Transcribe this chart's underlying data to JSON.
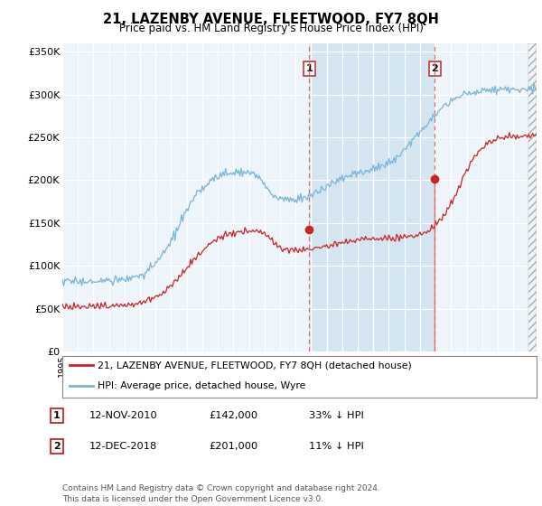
{
  "title": "21, LAZENBY AVENUE, FLEETWOOD, FY7 8QH",
  "subtitle": "Price paid vs. HM Land Registry's House Price Index (HPI)",
  "hpi_color": "#7ab4d8",
  "price_color": "#cc2222",
  "background_color": "#ddeef8",
  "plot_bg_color": "#f0f8ff",
  "shading_color": "#d0e8f8",
  "ylim": [
    0,
    360000
  ],
  "yticks": [
    0,
    50000,
    100000,
    150000,
    200000,
    250000,
    300000,
    350000
  ],
  "ytick_labels": [
    "£0",
    "£50K",
    "£100K",
    "£150K",
    "£200K",
    "£250K",
    "£300K",
    "£350K"
  ],
  "sale1_x": 2010.88,
  "sale1_y": 142000,
  "sale2_x": 2018.96,
  "sale2_y": 201000,
  "legend_line1": "21, LAZENBY AVENUE, FLEETWOOD, FY7 8QH (detached house)",
  "legend_line2": "HPI: Average price, detached house, Wyre",
  "table_rows": [
    {
      "num": "1",
      "date": "12-NOV-2010",
      "price": "£142,000",
      "pct": "33% ↓ HPI"
    },
    {
      "num": "2",
      "date": "12-DEC-2018",
      "price": "£201,000",
      "pct": "11% ↓ HPI"
    }
  ],
  "footer": "Contains HM Land Registry data © Crown copyright and database right 2024.\nThis data is licensed under the Open Government Licence v3.0.",
  "xmin": 1995.0,
  "xmax": 2025.5
}
